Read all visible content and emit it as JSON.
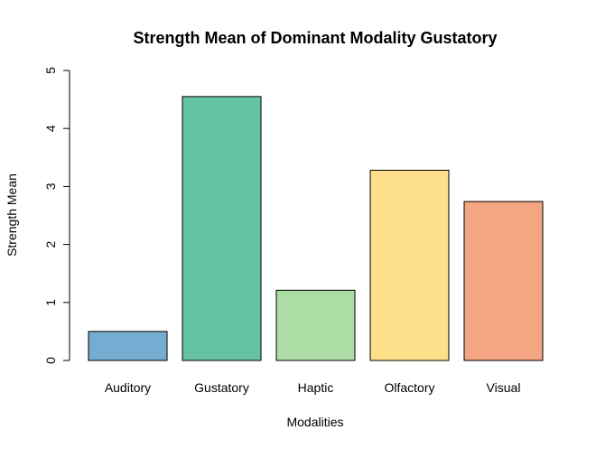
{
  "chart_data": {
    "type": "bar",
    "title": "Strength Mean of Dominant Modality Gustatory",
    "xlabel": "Modalities",
    "ylabel": "Strength Mean",
    "categories": [
      "Auditory",
      "Gustatory",
      "Haptic",
      "Olfactory",
      "Visual"
    ],
    "values": [
      0.5,
      4.55,
      1.21,
      3.28,
      2.74
    ],
    "colors": [
      "#74acd2",
      "#66c2a5",
      "#abdda4",
      "#fedf8a",
      "#f4a582"
    ],
    "ylim": [
      0,
      5
    ],
    "yticks": [
      0,
      1,
      2,
      3,
      4,
      5
    ],
    "grid": false,
    "legend": "none"
  }
}
